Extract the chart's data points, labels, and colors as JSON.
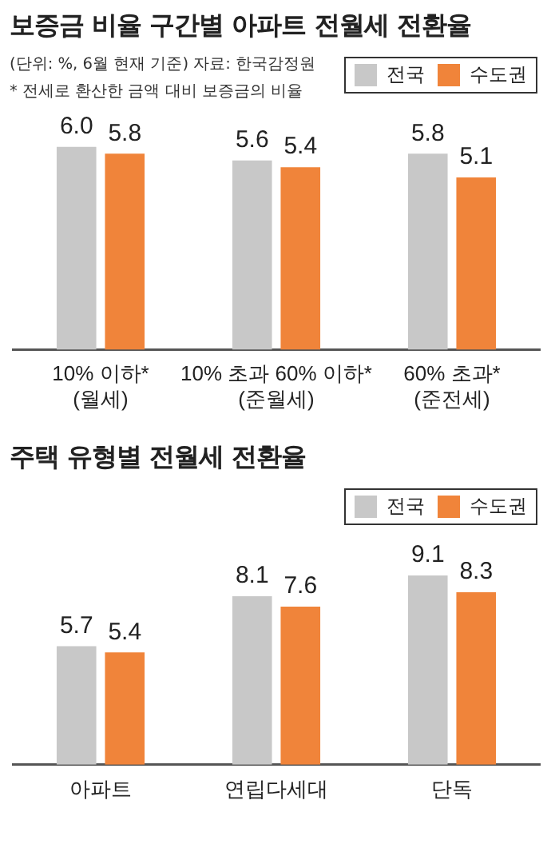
{
  "chart_data": [
    {
      "type": "bar",
      "title": "보증금 비율 구간별 아파트 전월세 전환율",
      "annotations": [
        "(단위: %, 6월 현재 기준)  자료: 한국감정원",
        "* 전세로 환산한 금액 대비 보증금의 비율"
      ],
      "categories": [
        "10% 이하*\n(월세)",
        "10% 초과 60% 이하*\n(준월세)",
        "60% 초과*\n(준전세)"
      ],
      "series": [
        {
          "name": "전국",
          "color": "#c8c8c8",
          "values": [
            6.0,
            5.6,
            5.8
          ],
          "value_labels": [
            "6.0",
            "5.6",
            "5.8"
          ]
        },
        {
          "name": "수도권",
          "color": "#f0843a",
          "values": [
            5.8,
            5.4,
            5.1
          ],
          "value_labels": [
            "5.8",
            "5.4",
            "5.1"
          ]
        }
      ],
      "legend": "top right"
    },
    {
      "type": "bar",
      "title": "주택 유형별 전월세 전환율",
      "categories": [
        "아파트",
        "연립다세대",
        "단독"
      ],
      "series": [
        {
          "name": "전국",
          "color": "#c8c8c8",
          "values": [
            5.7,
            8.1,
            9.1
          ],
          "value_labels": [
            "5.7",
            "8.1",
            "9.1"
          ]
        },
        {
          "name": "수도권",
          "color": "#f0843a",
          "values": [
            5.4,
            7.6,
            8.3
          ],
          "value_labels": [
            "5.4",
            "7.6",
            "8.3"
          ]
        }
      ],
      "legend": "top right"
    }
  ]
}
